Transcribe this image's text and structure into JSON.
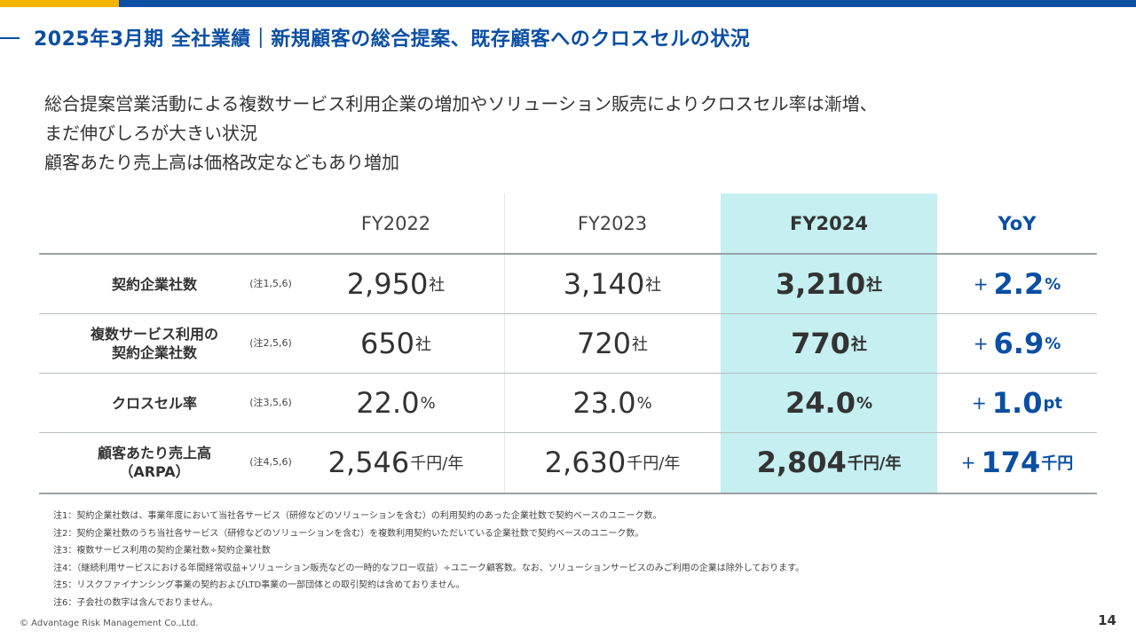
{
  "header": {
    "title": "2025年3月期 全社業績｜新規顧客の総合提案、既存顧客へのクロスセルの状況",
    "accent_color": "#0b4fa3",
    "highlight_color": "#f5b400"
  },
  "lead": [
    "総合提案営業活動による複数サービス利用企業の増加やソリューション販売によりクロスセル率は漸増、",
    "まだ伸びしろが大きい状況",
    "顧客あたり売上高は価格改定などもあり増加"
  ],
  "table": {
    "columns": [
      "FY2022",
      "FY2023",
      "FY2024",
      "YoY"
    ],
    "highlight_column_color": "#c5eff0",
    "rows": [
      {
        "label": [
          "契約企業社数"
        ],
        "note": "(注1,5,6)",
        "values": [
          {
            "v": "2,950",
            "u": "社"
          },
          {
            "v": "3,140",
            "u": "社"
          },
          {
            "v": "3,210",
            "u": "社"
          }
        ],
        "yoy": {
          "sign": "+",
          "v": "2.2",
          "u": "%"
        }
      },
      {
        "label": [
          "複数サービス利用の",
          "契約企業社数"
        ],
        "note": "(注2,5,6)",
        "values": [
          {
            "v": "650",
            "u": "社"
          },
          {
            "v": "720",
            "u": "社"
          },
          {
            "v": "770",
            "u": "社"
          }
        ],
        "yoy": {
          "sign": "+",
          "v": "6.9",
          "u": "%"
        }
      },
      {
        "label": [
          "クロスセル率"
        ],
        "note": "(注3,5,6)",
        "values": [
          {
            "v": "22.0",
            "u": "%"
          },
          {
            "v": "23.0",
            "u": "%"
          },
          {
            "v": "24.0",
            "u": "%"
          }
        ],
        "yoy": {
          "sign": "+",
          "v": "1.0",
          "u": "pt"
        }
      },
      {
        "label": [
          "顧客あたり売上高",
          "（ARPA）"
        ],
        "note": "(注4,5,6)",
        "values": [
          {
            "v": "2,546",
            "u": "千円/年"
          },
          {
            "v": "2,630",
            "u": "千円/年"
          },
          {
            "v": "2,804",
            "u": "千円/年"
          }
        ],
        "yoy": {
          "sign": "+",
          "v": "174",
          "u": "千円"
        }
      }
    ]
  },
  "notes": [
    "注1：契約企業社数は、事業年度において当社各サービス（研修などのソリューションを含む）の利用契約のあった企業社数で契約ベースのユニーク数。",
    "注2：契約企業社数のうち当社各サービス（研修などのソリューションを含む）を複数利用契約いただいている企業社数で契約ベースのユニーク数。",
    "注3：複数サービス利用の契約企業社数÷契約企業社数",
    "注4：（継続利用サービスにおける年間経常収益+ソリューション販売などの一時的なフロー収益）÷ユニーク顧客数。なお、ソリューションサービスのみご利用の企業は除外しております。",
    "注5：リスクファイナンシング事業の契約およびLTD事業の一部団体との取引契約は含めておりません。",
    "注6：子会社の数字は含んでおりません。"
  ],
  "footer": {
    "copyright": "© Advantage Risk Management Co.,Ltd.",
    "page_number": "14"
  }
}
